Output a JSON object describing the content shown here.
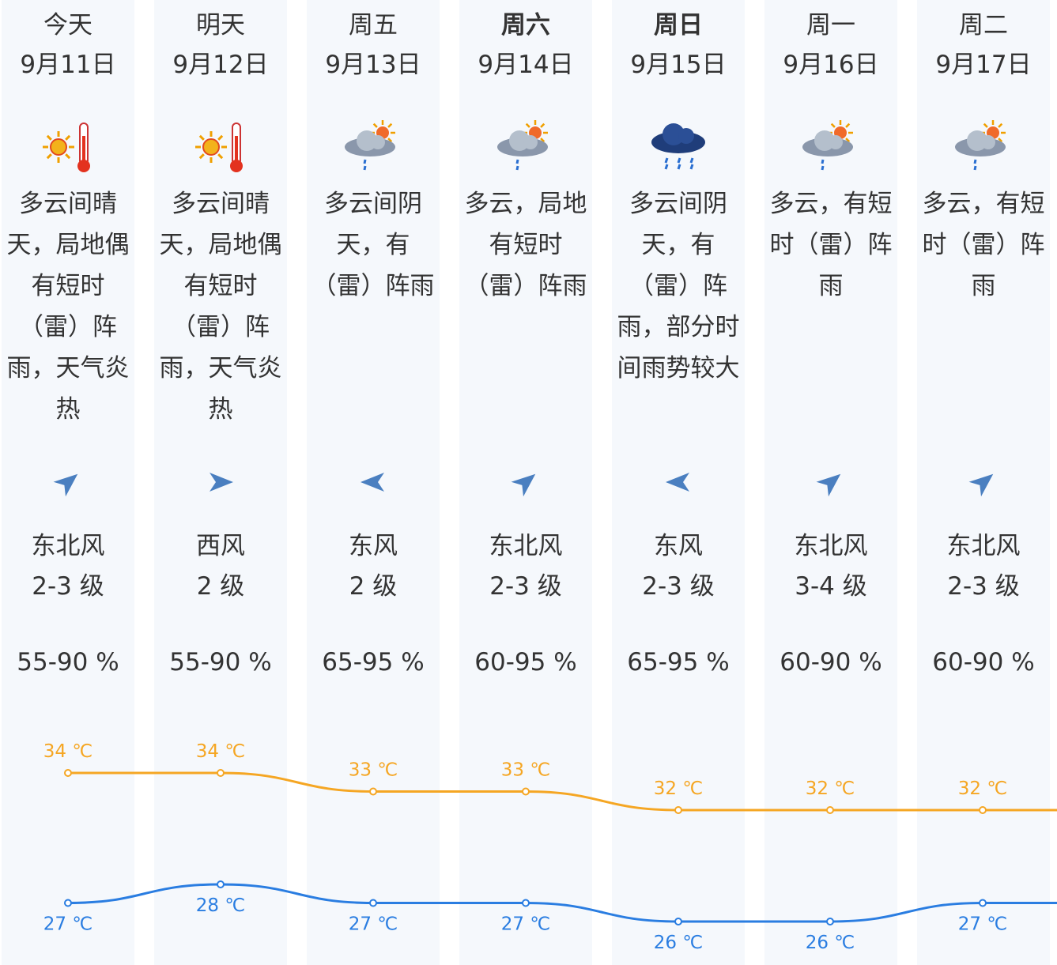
{
  "days": [
    {
      "day": "今天",
      "date": "9月11日",
      "bold": false,
      "icon": "sunny-hot-icon",
      "desc": "多云间晴天，局地偶有短时（雷）阵雨，天气炎热",
      "wind_dir": "wind-direction-northeast-icon",
      "wind": "东北风",
      "level": "2-3 级",
      "humidity": "55-90 %"
    },
    {
      "day": "明天",
      "date": "9月12日",
      "bold": false,
      "icon": "sunny-hot-icon",
      "desc": "多云间晴天，局地偶有短时（雷）阵雨，天气炎热",
      "wind_dir": "wind-direction-west-icon",
      "wind": "西风",
      "level": "2 级",
      "humidity": "55-90 %"
    },
    {
      "day": "周五",
      "date": "9月13日",
      "bold": false,
      "icon": "cloud-sun-shower-icon",
      "desc": "多云间阴天，有（雷）阵雨",
      "wind_dir": "wind-direction-east-icon",
      "wind": "东风",
      "level": "2 级",
      "humidity": "65-95 %"
    },
    {
      "day": "周六",
      "date": "9月14日",
      "bold": true,
      "icon": "cloud-sun-shower-icon",
      "desc": "多云，局地有短时（雷）阵雨",
      "wind_dir": "wind-direction-northeast-icon",
      "wind": "东北风",
      "level": "2-3 级",
      "humidity": "60-95 %"
    },
    {
      "day": "周日",
      "date": "9月15日",
      "bold": true,
      "icon": "dark-cloud-rain-icon",
      "desc": "多云间阴天，有（雷）阵雨，部分时间雨势较大",
      "wind_dir": "wind-direction-east-icon",
      "wind": "东风",
      "level": "2-3 级",
      "humidity": "65-95 %"
    },
    {
      "day": "周一",
      "date": "9月16日",
      "bold": false,
      "icon": "cloud-sun-shower-icon",
      "desc": "多云，有短时（雷）阵雨",
      "wind_dir": "wind-direction-northeast-icon",
      "wind": "东北风",
      "level": "3-4 级",
      "humidity": "60-90 %"
    },
    {
      "day": "周二",
      "date": "9月17日",
      "bold": false,
      "icon": "cloud-sun-shower-icon",
      "desc": "多云，有短时（雷）阵雨",
      "wind_dir": "wind-direction-northeast-icon",
      "wind": "东北风",
      "level": "2-3 级",
      "humidity": "60-90 %"
    }
  ],
  "colors": {
    "high": "#f5a623",
    "low": "#2a7de1",
    "column_bg": "#f5f8fc",
    "arrow": "#4a7fc0"
  },
  "chart_data": {
    "type": "line",
    "categories": [
      "9月11日",
      "9月12日",
      "9月13日",
      "9月14日",
      "9月15日",
      "9月16日",
      "9月17日"
    ],
    "series": [
      {
        "values": [
          34,
          34,
          33,
          33,
          32,
          32,
          32
        ],
        "labels": [
          "34 ℃",
          "34 ℃",
          "33 ℃",
          "33 ℃",
          "32 ℃",
          "32 ℃",
          "32 ℃"
        ]
      },
      {
        "values": [
          27,
          28,
          27,
          27,
          26,
          26,
          27
        ],
        "labels": [
          "27 ℃",
          "28 ℃",
          "27 ℃",
          "27 ℃",
          "26 ℃",
          "26 ℃",
          "27 ℃"
        ]
      }
    ],
    "unit": "℃"
  }
}
